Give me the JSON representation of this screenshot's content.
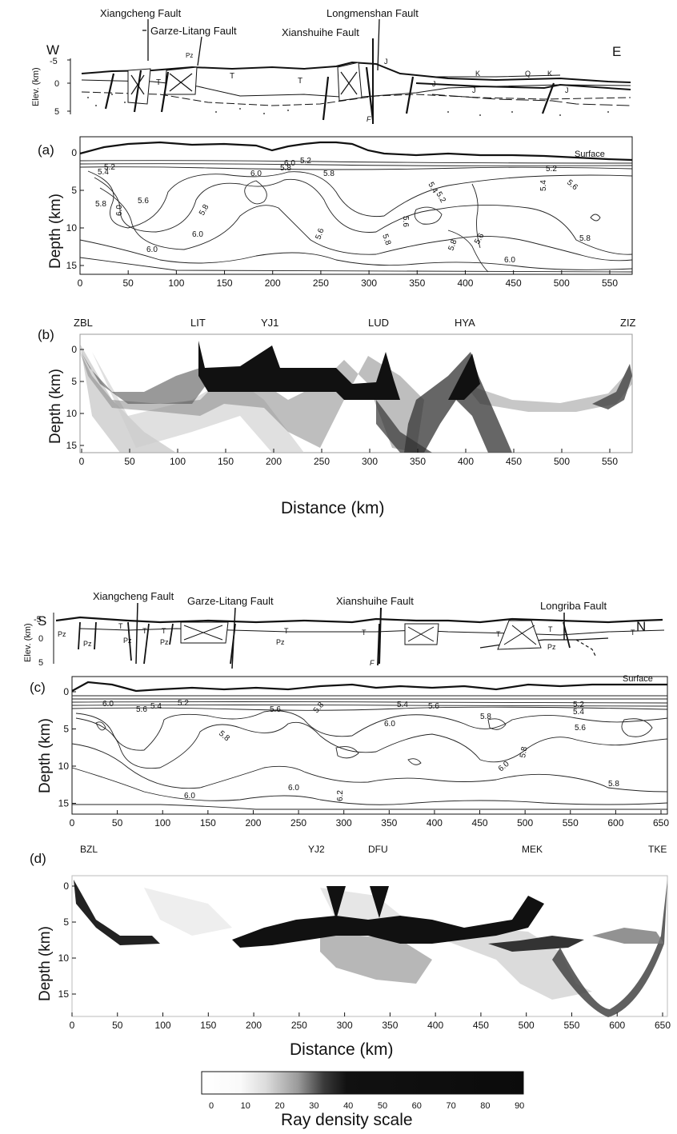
{
  "section1": {
    "faults": [
      "Xiangcheng Fault",
      "Garze-Litang Fault",
      "Longmenshan Fault",
      "Xianshuihe Fault"
    ],
    "dir_left": "W",
    "dir_right": "E",
    "elev_label": "Elev. (km)",
    "elev_ticks": [
      "-5",
      "0",
      "5"
    ],
    "geo_labels": [
      "Pz",
      "T",
      "T",
      "T",
      "J",
      "J",
      "K",
      "Q",
      "K",
      "J",
      "J",
      "F"
    ]
  },
  "panel_a": {
    "letter": "(a)",
    "surface_label": "Surface",
    "ylabel": "Depth (km)",
    "yticks": [
      "0",
      "5",
      "10",
      "15"
    ],
    "xticks": [
      "0",
      "50",
      "100",
      "150",
      "200",
      "250",
      "300",
      "350",
      "400",
      "450",
      "500",
      "550"
    ],
    "contour_labels": [
      "5.2",
      "5.4",
      "5.8",
      "6.0",
      "5.6",
      "6.0",
      "5.8",
      "6.0",
      "5.2",
      "5.8",
      "5.8",
      "5.4",
      "5.2",
      "5.6",
      "5.8",
      "5.6",
      "5.8",
      "5.6",
      "6.0",
      "5.2",
      "5.4",
      "5.6",
      "5.8",
      "6.0"
    ]
  },
  "panel_b": {
    "letter": "(b)",
    "stations": [
      "ZBL",
      "LIT",
      "YJ1",
      "LUD",
      "HYA",
      "ZIZ"
    ],
    "ylabel": "Depth (km)",
    "yticks": [
      "0",
      "5",
      "10",
      "15"
    ],
    "xticks": [
      "0",
      "50",
      "100",
      "150",
      "200",
      "250",
      "300",
      "350",
      "400",
      "450",
      "500",
      "550"
    ],
    "xlabel": "Distance (km)"
  },
  "section2": {
    "faults": [
      "Xiangcheng Fault",
      "Garze-Litang Fault",
      "Xianshuihe Fault",
      "Longriba Fault"
    ],
    "dir_left": "S",
    "dir_right": "N",
    "elev_label": "Elev. (km)",
    "elev_ticks": [
      "-5",
      "0",
      "5"
    ],
    "geo_labels": [
      "Pz",
      "Pz",
      "T",
      "Pz",
      "T",
      "T",
      "Pz",
      "T",
      "Pz",
      "T",
      "T",
      "T",
      "Pz",
      "T",
      "F"
    ]
  },
  "panel_c": {
    "letter": "(c)",
    "surface_label": "Surface",
    "ylabel": "Depth (km)",
    "yticks": [
      "0",
      "5",
      "10",
      "15"
    ],
    "xticks": [
      "0",
      "50",
      "100",
      "150",
      "200",
      "250",
      "300",
      "350",
      "400",
      "450",
      "500",
      "550",
      "600",
      "650"
    ],
    "contour_labels": [
      "6.0",
      "5.6",
      "5.4",
      "5.2",
      "5.8",
      "5.6",
      "5.8",
      "5.4",
      "5.6",
      "6.0",
      "5.8",
      "5.2",
      "5.4",
      "5.6",
      "5.8",
      "6.0",
      "6.0",
      "6.2",
      "6.0",
      "5.8"
    ]
  },
  "panel_d": {
    "letter": "(d)",
    "stations": [
      "BZL",
      "YJ2",
      "DFU",
      "MEK",
      "TKE"
    ],
    "ylabel": "Depth (km)",
    "yticks": [
      "0",
      "5",
      "10",
      "15"
    ],
    "xticks": [
      "0",
      "50",
      "100",
      "150",
      "200",
      "250",
      "300",
      "350",
      "400",
      "450",
      "500",
      "550",
      "600",
      "650"
    ],
    "xlabel": "Distance (km)"
  },
  "scale": {
    "ticks": [
      "0",
      "10",
      "20",
      "30",
      "40",
      "50",
      "60",
      "70",
      "80",
      "90"
    ],
    "title": "Ray density scale"
  }
}
